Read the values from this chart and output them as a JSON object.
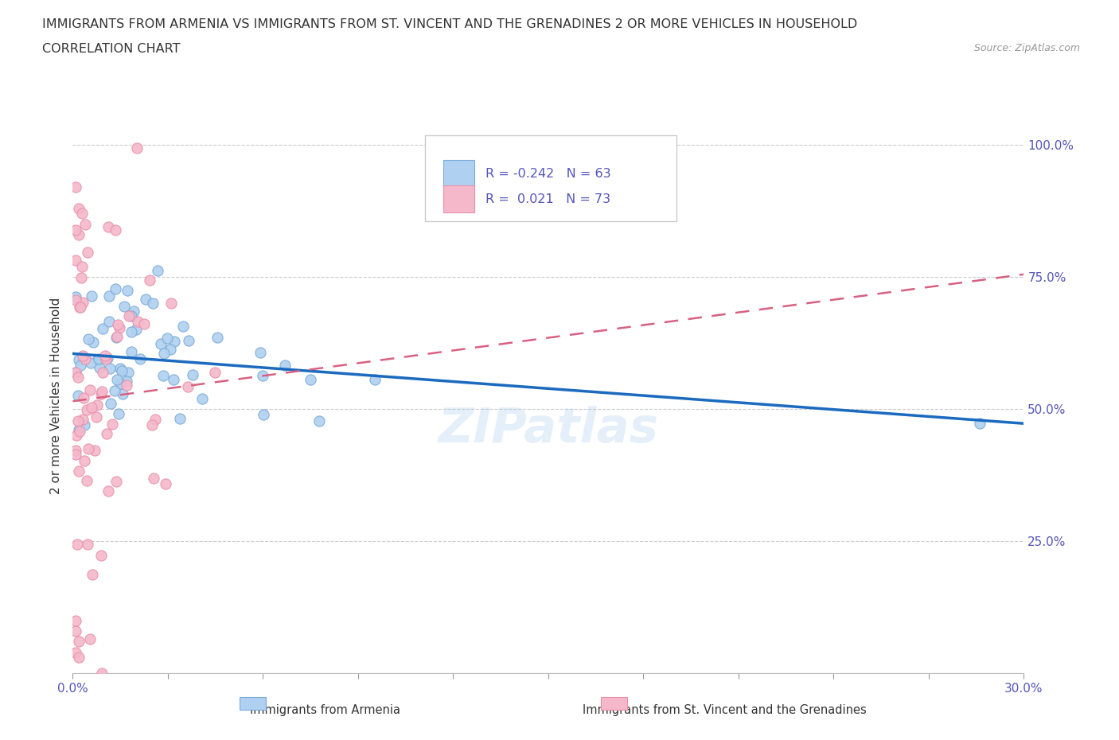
{
  "title_line1": "IMMIGRANTS FROM ARMENIA VS IMMIGRANTS FROM ST. VINCENT AND THE GRENADINES 2 OR MORE VEHICLES IN HOUSEHOLD",
  "title_line2": "CORRELATION CHART",
  "source": "Source: ZipAtlas.com",
  "ylabel": "2 or more Vehicles in Household",
  "xlim": [
    0.0,
    0.3
  ],
  "ylim": [
    0.0,
    1.05
  ],
  "armenia_color": "#afd0f0",
  "armenia_edge": "#7aaad8",
  "svg_color": "#f5b8cb",
  "svg_edge": "#e890a8",
  "trend_armenia_color": "#1a6abf",
  "trend_svg_color": "#d96080",
  "R_armenia": -0.242,
  "N_armenia": 63,
  "R_svg": 0.021,
  "N_svg": 73,
  "watermark": "ZIPatlas",
  "arm_trend_x0": 0.0,
  "arm_trend_y0": 0.605,
  "arm_trend_x1": 0.295,
  "arm_trend_y1": 0.475,
  "svg_trend_x0": 0.0,
  "svg_trend_y0": 0.515,
  "svg_trend_x1": 0.3,
  "svg_trend_y1": 0.755,
  "grid_color": "#cccccc",
  "tick_color": "#5555bb",
  "label_color": "#333333"
}
